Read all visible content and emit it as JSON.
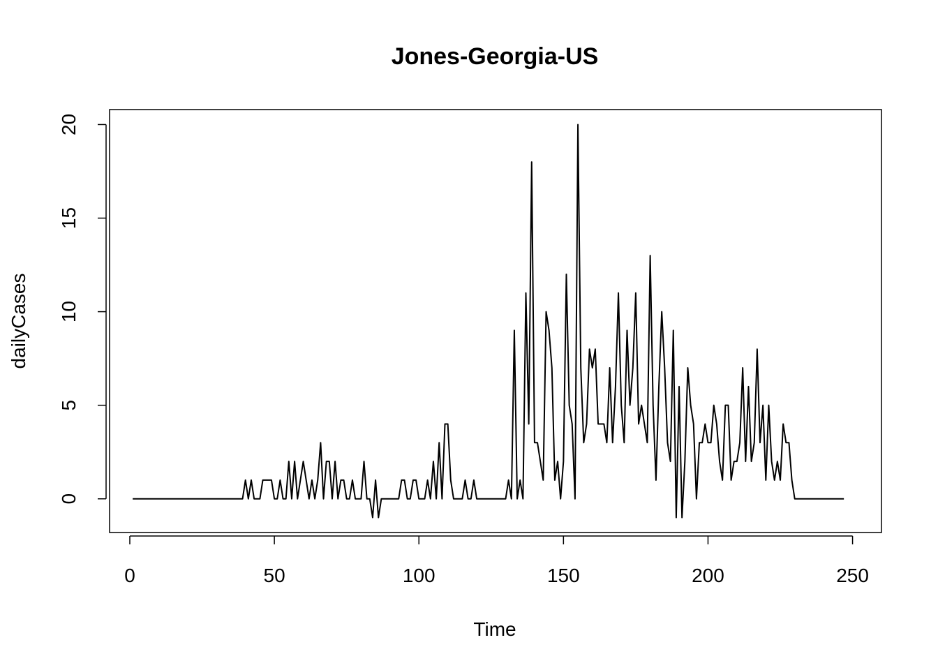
{
  "chart_data": {
    "type": "line",
    "title": "Jones-Georgia-US",
    "xlabel": "Time",
    "ylabel": "dailyCases",
    "xlim": [
      -7,
      260
    ],
    "ylim": [
      -1.8,
      20.8
    ],
    "x_ticks": [
      0,
      50,
      100,
      150,
      200,
      250
    ],
    "y_ticks": [
      0,
      5,
      10,
      15,
      20
    ],
    "grid": false,
    "legend": "none",
    "line_color": "#000000",
    "series": [
      {
        "values": [
          0,
          0,
          0,
          0,
          0,
          0,
          0,
          0,
          0,
          0,
          0,
          0,
          0,
          0,
          0,
          0,
          0,
          0,
          0,
          0,
          0,
          0,
          0,
          0,
          0,
          0,
          0,
          0,
          0,
          0,
          0,
          0,
          0,
          0,
          0,
          0,
          0,
          0,
          0,
          1,
          0,
          1,
          0,
          0,
          0,
          1,
          1,
          1,
          1,
          0,
          0,
          1,
          0,
          0,
          2,
          0,
          2,
          0,
          1,
          2,
          1,
          0,
          1,
          0,
          1,
          3,
          0,
          2,
          2,
          0,
          2,
          0,
          1,
          1,
          0,
          0,
          1,
          0,
          0,
          0,
          2,
          0,
          0,
          -1,
          1,
          -1,
          0,
          0,
          0,
          0,
          0,
          0,
          0,
          1,
          1,
          0,
          0,
          1,
          1,
          0,
          0,
          0,
          1,
          0,
          2,
          0,
          3,
          0,
          4,
          4,
          1,
          0,
          0,
          0,
          0,
          1,
          0,
          0,
          1,
          0,
          0,
          0,
          0,
          0,
          0,
          0,
          0,
          0,
          0,
          0,
          1,
          0,
          9,
          0,
          1,
          0,
          11,
          4,
          18,
          3,
          3,
          2,
          1,
          10,
          9,
          7,
          1,
          2,
          0,
          2,
          12,
          5,
          4,
          0,
          20,
          7,
          3,
          4,
          8,
          7,
          8,
          4,
          4,
          4,
          3,
          7,
          3,
          6,
          11,
          5,
          3,
          9,
          5,
          7,
          11,
          4,
          5,
          4,
          3,
          13,
          5,
          1,
          6,
          10,
          7,
          3,
          2,
          9,
          -1,
          6,
          -1,
          2,
          7,
          5,
          4,
          0,
          3,
          3,
          4,
          3,
          3,
          5,
          4,
          2,
          1,
          5,
          5,
          1,
          2,
          2,
          3,
          7,
          2,
          6,
          2,
          3,
          8,
          3,
          5,
          1,
          5,
          2,
          1,
          2,
          1,
          4,
          3,
          3,
          1,
          0,
          0,
          0,
          0,
          0,
          0,
          0,
          0,
          0,
          0,
          0,
          0,
          0,
          0,
          0,
          0,
          0,
          0
        ]
      }
    ]
  }
}
